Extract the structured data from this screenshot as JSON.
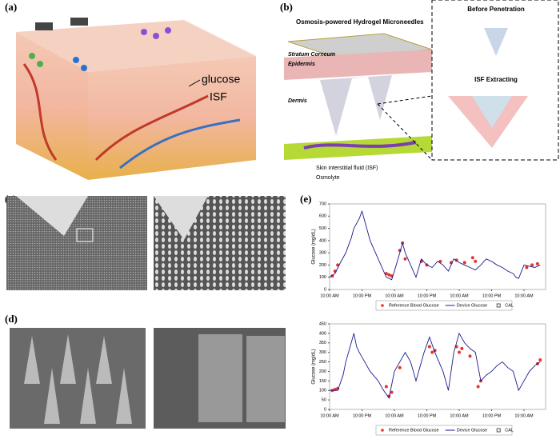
{
  "panels": {
    "a": {
      "label": "(a)",
      "glucose": "glucose",
      "isf": "ISF"
    },
    "b": {
      "label": "(b)",
      "title": "Osmosis-powered  Hydrogel Microneedles",
      "stratum": "Stratum Corneum",
      "epidermis": "Epidermis",
      "dermis": "Dermis",
      "before": "Before Penetration",
      "extracting": "ISF Extracting",
      "legend_isf": "Skin interstitial fluid (ISF)",
      "legend_osmolyte": "Osmolyte"
    },
    "c": {
      "label": "(c)"
    },
    "d": {
      "label": "(d)"
    },
    "e": {
      "label": "(e)"
    }
  },
  "chart_data": [
    {
      "type": "line",
      "ylabel": "Glucose (mg/dL)",
      "xlim": [
        0,
        80
      ],
      "ylim": [
        0,
        700
      ],
      "yticks": [
        0,
        100,
        200,
        300,
        400,
        500,
        600,
        700
      ],
      "xticks": [
        {
          "value": 0,
          "label": "10:00 AM"
        },
        {
          "value": 12,
          "label": "10:00 PM"
        },
        {
          "value": 24,
          "label": "10:00 AM"
        },
        {
          "value": 36,
          "label": "10:00 PM"
        },
        {
          "value": 48,
          "label": "10:00 AM"
        },
        {
          "value": 60,
          "label": "10:00 PM"
        },
        {
          "value": 72,
          "label": "10:00 AM"
        }
      ],
      "series": [
        {
          "name": "Reference Blood Glucose",
          "color": "#e8322c",
          "style": "points",
          "x": [
            1,
            2,
            3,
            21,
            22,
            23,
            26,
            27,
            28,
            34,
            36,
            41,
            45,
            47,
            50,
            53,
            54,
            73,
            75,
            77
          ],
          "values": [
            110,
            150,
            200,
            130,
            120,
            110,
            320,
            380,
            250,
            230,
            200,
            230,
            220,
            240,
            220,
            260,
            230,
            180,
            200,
            210
          ]
        },
        {
          "name": "Device Glucose",
          "color": "#1a1a8c",
          "style": "line",
          "x": [
            0,
            2,
            4,
            6,
            8,
            9,
            11,
            12,
            13,
            15,
            17,
            19,
            21,
            23,
            24,
            26,
            27,
            28,
            30,
            32,
            34,
            36,
            38,
            40,
            42,
            44,
            46,
            48,
            50,
            52,
            54,
            56,
            58,
            60,
            62,
            64,
            66,
            68,
            69,
            70,
            72,
            74,
            76,
            78
          ],
          "values": [
            100,
            130,
            220,
            300,
            420,
            500,
            580,
            640,
            560,
            400,
            300,
            200,
            100,
            80,
            150,
            300,
            380,
            300,
            200,
            100,
            250,
            200,
            180,
            230,
            200,
            150,
            250,
            220,
            200,
            180,
            160,
            200,
            250,
            230,
            200,
            180,
            150,
            130,
            100,
            90,
            200,
            190,
            180,
            200
          ]
        },
        {
          "name": "CAL",
          "color": "#555555",
          "style": "square",
          "x": [],
          "values": []
        }
      ]
    },
    {
      "type": "line",
      "ylabel": "Glucose (mg/dL)",
      "xlim": [
        0,
        80
      ],
      "ylim": [
        0,
        450
      ],
      "yticks": [
        0,
        50,
        100,
        150,
        200,
        250,
        300,
        350,
        400,
        450
      ],
      "xticks": [
        {
          "value": 0,
          "label": "10:00 AM"
        },
        {
          "value": 12,
          "label": "10:00 PM"
        },
        {
          "value": 24,
          "label": "10:00 AM"
        },
        {
          "value": 36,
          "label": "10:00 PM"
        },
        {
          "value": 48,
          "label": "10:00 AM"
        },
        {
          "value": 60,
          "label": "10:00 PM"
        },
        {
          "value": 72,
          "label": "10:00 AM"
        }
      ],
      "series": [
        {
          "name": "Reference Blood Glucose",
          "color": "#e8322c",
          "style": "points",
          "x": [
            1,
            2,
            3,
            21,
            22,
            23,
            26,
            37,
            38,
            39,
            47,
            48,
            49,
            52,
            55,
            56,
            77,
            78
          ],
          "values": [
            100,
            105,
            110,
            120,
            70,
            90,
            220,
            330,
            300,
            310,
            330,
            300,
            320,
            280,
            120,
            150,
            240,
            260
          ]
        },
        {
          "name": "Device Glucose",
          "color": "#1a1a8c",
          "style": "line",
          "x": [
            0,
            3,
            5,
            6,
            8,
            9,
            10,
            11,
            13,
            15,
            18,
            20,
            22,
            24,
            26,
            28,
            30,
            32,
            34,
            35,
            37,
            39,
            42,
            44,
            46,
            48,
            50,
            52,
            54,
            56,
            58,
            60,
            62,
            64,
            66,
            68,
            70,
            72,
            74,
            76,
            78
          ],
          "values": [
            100,
            100,
            180,
            250,
            350,
            400,
            330,
            300,
            250,
            200,
            150,
            100,
            60,
            200,
            250,
            300,
            250,
            150,
            250,
            300,
            380,
            300,
            200,
            100,
            300,
            400,
            350,
            320,
            300,
            150,
            180,
            200,
            230,
            250,
            220,
            200,
            100,
            150,
            200,
            230,
            250
          ]
        },
        {
          "name": "CAL",
          "color": "#555555",
          "style": "square",
          "x": [],
          "values": []
        }
      ]
    }
  ]
}
